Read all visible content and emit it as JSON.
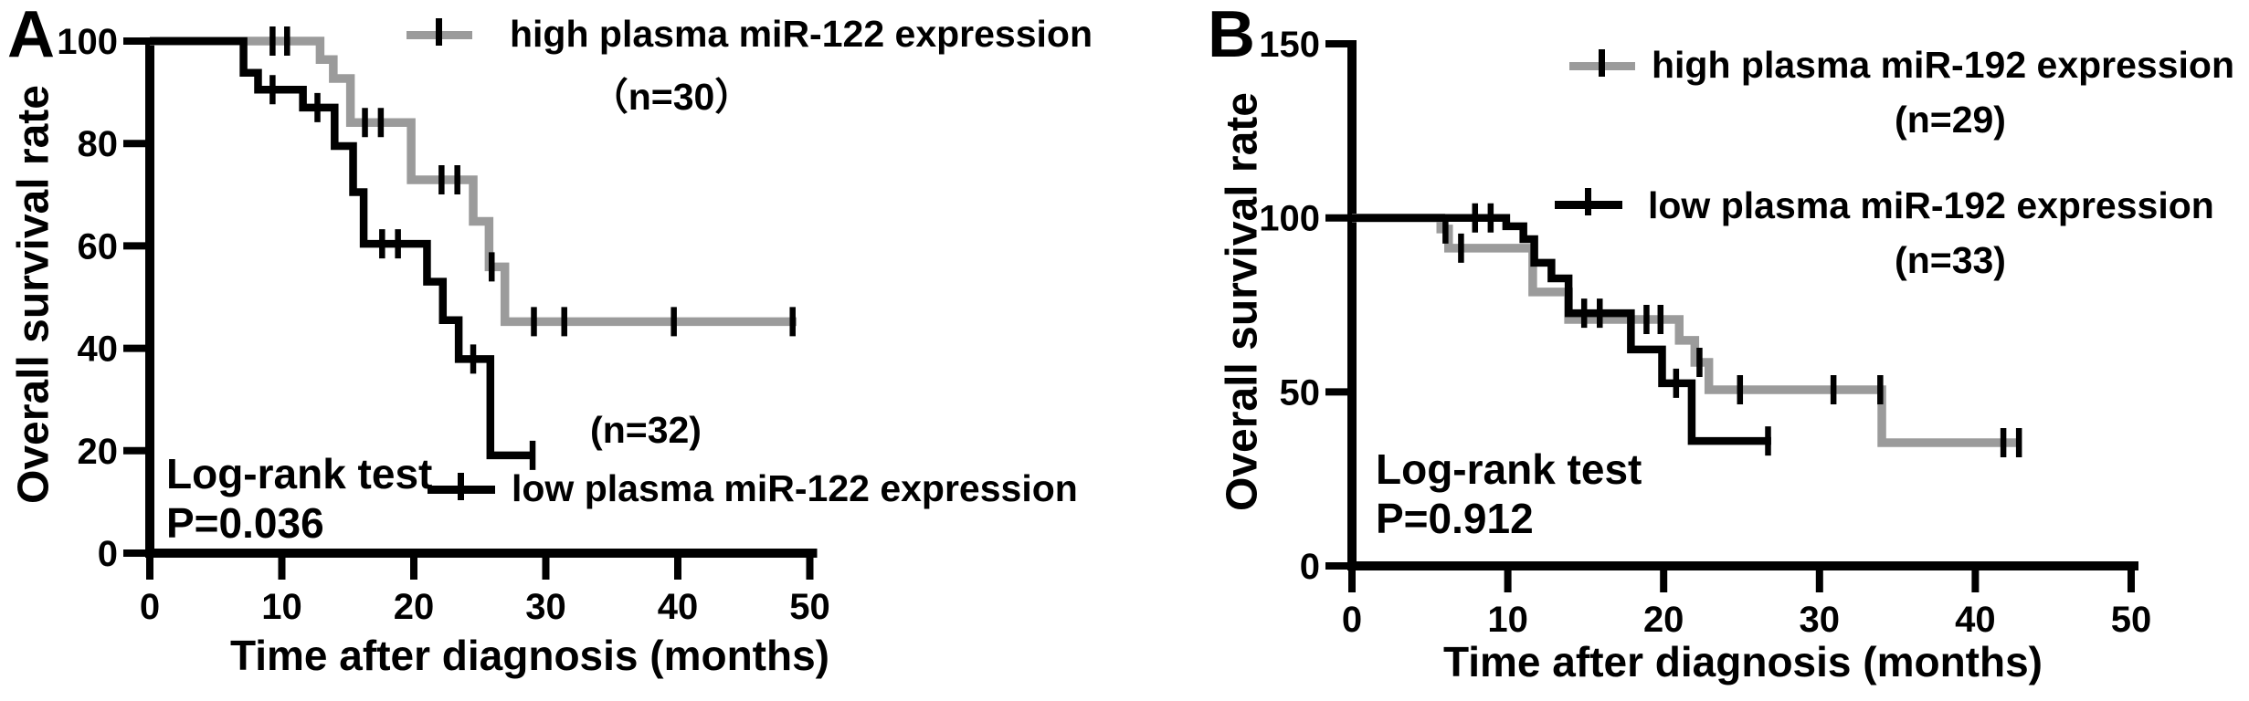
{
  "figure": {
    "background": "#ffffff",
    "curve_black": "#000000",
    "curve_gray": "#9b9b9b"
  },
  "panels": [
    {
      "label": "A",
      "y_title": "Overall survival rate",
      "x_title": "Time after diagnosis (months)",
      "stats_line1": "Log-rank test",
      "stats_line2": "P=0.036",
      "legend_high": {
        "label": "high plasma miR-122 expression",
        "n_label": "（n=30）"
      },
      "legend_low": {
        "label": "low plasma miR-122 expression",
        "n_label": "(n=32)"
      }
    },
    {
      "label": "B",
      "y_title": "Overall survival rate",
      "x_title": "Time after diagnosis (months)",
      "stats_line1": "Log-rank test",
      "stats_line2": "P=0.912",
      "legend_high": {
        "label": "high plasma miR-192 expression",
        "n_label": "(n=29)"
      },
      "legend_low": {
        "label": "low plasma miR-192 expression",
        "n_label": "(n=33)"
      }
    }
  ],
  "chart_data": [
    {
      "type": "line",
      "subtype": "kaplan-meier-step",
      "panel": "A",
      "xlabel": "Time after diagnosis (months)",
      "ylabel": "Overall survival rate",
      "xlim": [
        0,
        50
      ],
      "ylim": [
        0,
        100
      ],
      "xticks": [
        0,
        10,
        20,
        30,
        40,
        50
      ],
      "yticks": [
        0,
        20,
        40,
        60,
        80,
        100
      ],
      "grid": false,
      "test": "Log-rank test",
      "p_value": "P=0.036",
      "series": [
        {
          "name": "high plasma miR-122 expression",
          "n": 30,
          "color": "#9b9b9b",
          "levels": [
            {
              "s": 100,
              "from": 0,
              "to": 12.9
            },
            {
              "s": 96.4,
              "from": 12.9,
              "to": 13.9
            },
            {
              "s": 92.7,
              "from": 13.9,
              "to": 15.2
            },
            {
              "s": 84.1,
              "from": 15.2,
              "to": 19.8
            },
            {
              "s": 72.9,
              "from": 19.8,
              "to": 24.5
            },
            {
              "s": 64.8,
              "from": 24.5,
              "to": 25.7
            },
            {
              "s": 55.9,
              "from": 25.7,
              "to": 26.9
            },
            {
              "s": 45.2,
              "from": 26.9,
              "to": 49.0
            }
          ],
          "censors": [
            {
              "t": 9.3,
              "s": 100
            },
            {
              "t": 10.4,
              "s": 100
            },
            {
              "t": 16.3,
              "s": 84.1
            },
            {
              "t": 17.5,
              "s": 84.1
            },
            {
              "t": 22.1,
              "s": 72.9
            },
            {
              "t": 23.3,
              "s": 72.9
            },
            {
              "t": 25.9,
              "s": 55.9
            },
            {
              "t": 29.1,
              "s": 45.2
            },
            {
              "t": 31.4,
              "s": 45.2
            },
            {
              "t": 39.7,
              "s": 45.2
            },
            {
              "t": 48.7,
              "s": 45.2
            }
          ]
        },
        {
          "name": "low plasma miR-122 expression",
          "n": 32,
          "color": "#000000",
          "levels": [
            {
              "s": 100,
              "from": 0,
              "to": 7.1
            },
            {
              "s": 93.8,
              "from": 7.1,
              "to": 8.2
            },
            {
              "s": 90.5,
              "from": 8.2,
              "to": 11.6
            },
            {
              "s": 87.0,
              "from": 11.6,
              "to": 14.0
            },
            {
              "s": 79.5,
              "from": 14.0,
              "to": 15.4
            },
            {
              "s": 70.5,
              "from": 15.4,
              "to": 16.2
            },
            {
              "s": 60.4,
              "from": 16.2,
              "to": 21.0
            },
            {
              "s": 53.0,
              "from": 21.0,
              "to": 22.2
            },
            {
              "s": 45.5,
              "from": 22.2,
              "to": 23.4
            },
            {
              "s": 37.9,
              "from": 23.4,
              "to": 25.8
            },
            {
              "s": 19.1,
              "from": 25.8,
              "to": 29.1
            }
          ],
          "censors": [
            {
              "t": 9.3,
              "s": 90.5
            },
            {
              "t": 12.7,
              "s": 87.0
            },
            {
              "t": 17.6,
              "s": 60.4
            },
            {
              "t": 18.8,
              "s": 60.4
            },
            {
              "t": 24.5,
              "s": 37.9
            },
            {
              "t": 29.0,
              "s": 19.1
            }
          ]
        }
      ]
    },
    {
      "type": "line",
      "subtype": "kaplan-meier-step",
      "panel": "B",
      "xlabel": "Time after diagnosis (months)",
      "ylabel": "Overall survival rate",
      "xlim": [
        0,
        50
      ],
      "ylim": [
        0,
        150
      ],
      "xticks": [
        0,
        10,
        20,
        30,
        40,
        50
      ],
      "yticks": [
        0,
        50,
        100,
        150
      ],
      "grid": false,
      "test": "Log-rank test",
      "p_value": "P=0.912",
      "series": [
        {
          "name": "high plasma miR-192 expression",
          "n": 29,
          "color": "#9b9b9b",
          "levels": [
            {
              "s": 100,
              "from": 0,
              "to": 5.7
            },
            {
              "s": 96.8,
              "from": 5.7,
              "to": 6.2
            },
            {
              "s": 91.3,
              "from": 6.2,
              "to": 11.6
            },
            {
              "s": 78.7,
              "from": 11.6,
              "to": 13.9
            },
            {
              "s": 70.8,
              "from": 13.9,
              "to": 21.0
            },
            {
              "s": 64.8,
              "from": 21.0,
              "to": 22.0
            },
            {
              "s": 58.5,
              "from": 22.0,
              "to": 22.9
            },
            {
              "s": 50.6,
              "from": 22.9,
              "to": 34.0
            },
            {
              "s": 35.4,
              "from": 34.0,
              "to": 42.9
            }
          ],
          "censors": [
            {
              "t": 6.0,
              "s": 96.8
            },
            {
              "t": 7.0,
              "s": 91.3
            },
            {
              "t": 18.9,
              "s": 70.8
            },
            {
              "t": 19.8,
              "s": 70.8
            },
            {
              "t": 22.3,
              "s": 58.5
            },
            {
              "t": 24.9,
              "s": 50.6
            },
            {
              "t": 30.9,
              "s": 50.6
            },
            {
              "t": 33.9,
              "s": 50.6
            },
            {
              "t": 41.8,
              "s": 35.4
            },
            {
              "t": 42.8,
              "s": 35.4
            }
          ]
        },
        {
          "name": "low plasma miR-192 expression",
          "n": 33,
          "color": "#000000",
          "levels": [
            {
              "s": 100,
              "from": 0,
              "to": 9.9
            },
            {
              "s": 97.6,
              "from": 9.9,
              "to": 11.0
            },
            {
              "s": 93.9,
              "from": 11.0,
              "to": 11.7
            },
            {
              "s": 87.1,
              "from": 11.7,
              "to": 12.8
            },
            {
              "s": 82.6,
              "from": 12.8,
              "to": 13.9
            },
            {
              "s": 72.6,
              "from": 13.9,
              "to": 17.9
            },
            {
              "s": 62.2,
              "from": 17.9,
              "to": 19.9
            },
            {
              "s": 52.5,
              "from": 19.9,
              "to": 21.8
            },
            {
              "s": 35.9,
              "from": 21.8,
              "to": 26.9
            }
          ],
          "censors": [
            {
              "t": 7.9,
              "s": 100
            },
            {
              "t": 8.9,
              "s": 100
            },
            {
              "t": 14.9,
              "s": 72.6
            },
            {
              "t": 15.9,
              "s": 72.6
            },
            {
              "t": 20.8,
              "s": 52.5
            },
            {
              "t": 26.7,
              "s": 35.9
            }
          ]
        }
      ]
    }
  ]
}
